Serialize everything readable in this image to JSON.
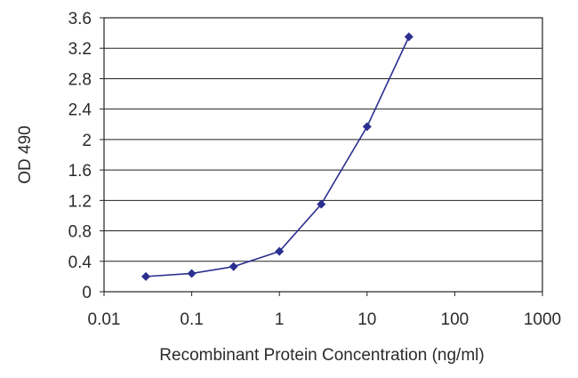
{
  "chart_data": {
    "type": "scatter",
    "xlabel": "Recombinant Protein Concentration (ng/ml)",
    "ylabel": "OD 490",
    "x_scale": "log",
    "xlim": [
      0.01,
      1000
    ],
    "ylim": [
      0,
      3.6
    ],
    "x_ticks": [
      "0.01",
      "0.1",
      "1",
      "10",
      "100",
      "1000"
    ],
    "y_ticks": [
      "0",
      "0.4",
      "0.8",
      "1.2",
      "1.6",
      "2",
      "2.4",
      "2.8",
      "3.2",
      "3.6"
    ],
    "grid": "horizontal",
    "series": [
      {
        "color": "#2b2f8f",
        "points": [
          {
            "x": 0.03,
            "y": 0.2
          },
          {
            "x": 0.1,
            "y": 0.24
          },
          {
            "x": 0.3,
            "y": 0.33
          },
          {
            "x": 1,
            "y": 0.53
          },
          {
            "x": 3,
            "y": 1.15
          },
          {
            "x": 10,
            "y": 2.17
          },
          {
            "x": 30,
            "y": 3.35
          }
        ]
      }
    ]
  }
}
